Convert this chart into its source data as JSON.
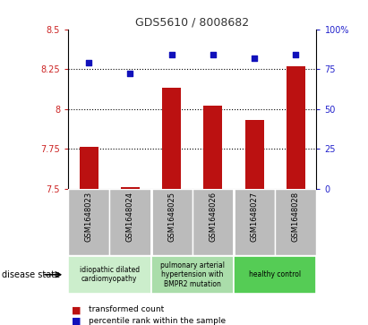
{
  "title": "GDS5610 / 8008682",
  "samples": [
    "GSM1648023",
    "GSM1648024",
    "GSM1648025",
    "GSM1648026",
    "GSM1648027",
    "GSM1648028"
  ],
  "transformed_count": [
    7.76,
    7.51,
    8.13,
    8.02,
    7.93,
    8.27
  ],
  "percentile_rank": [
    79,
    72,
    84,
    84,
    82,
    84
  ],
  "ylim_left": [
    7.5,
    8.5
  ],
  "ylim_right": [
    0,
    100
  ],
  "yticks_left": [
    7.5,
    7.75,
    8.0,
    8.25,
    8.5
  ],
  "yticks_right": [
    0,
    25,
    50,
    75,
    100
  ],
  "ytick_labels_left": [
    "7.5",
    "7.75",
    "8",
    "8.25",
    "8.5"
  ],
  "ytick_labels_right": [
    "0",
    "25",
    "50",
    "75",
    "100%"
  ],
  "bar_color": "#BB1111",
  "scatter_color": "#1111BB",
  "background_color": "#ffffff",
  "disease_groups": [
    {
      "label": "idiopathic dilated\ncardiomyopathy",
      "samples": [
        0,
        1
      ],
      "color": "#cceecc"
    },
    {
      "label": "pulmonary arterial\nhypertension with\nBMPR2 mutation",
      "samples": [
        2,
        3
      ],
      "color": "#aaddaa"
    },
    {
      "label": "healthy control",
      "samples": [
        4,
        5
      ],
      "color": "#55cc55"
    }
  ],
  "legend_bar_label": "transformed count",
  "legend_scatter_label": "percentile rank within the sample",
  "disease_state_label": "disease state",
  "left_axis_color": "#CC2222",
  "right_axis_color": "#2222CC",
  "sample_box_color": "#bbbbbb"
}
